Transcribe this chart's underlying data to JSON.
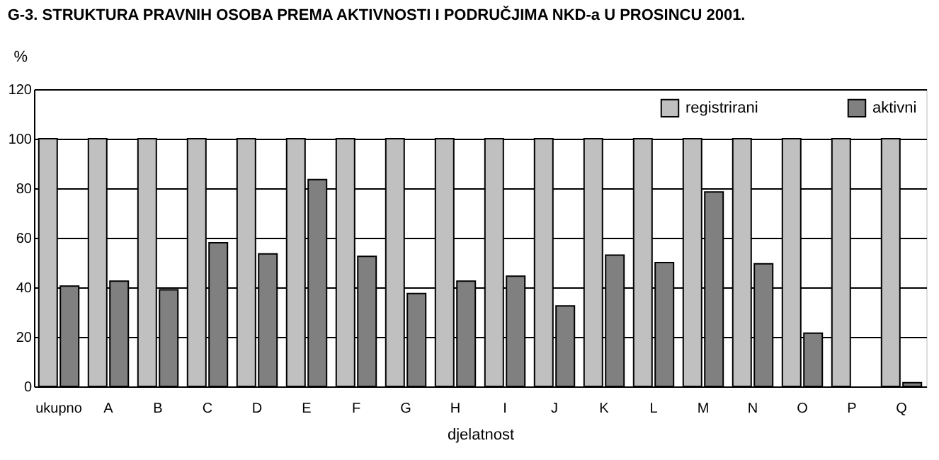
{
  "chart_data": {
    "type": "bar",
    "title": "G-3. STRUKTURA PRAVNIH OSOBA PREMA AKTIVNOSTI I PODRUČJIMA NKD-a U PROSINCU 2001.",
    "xlabel": "djelatnost",
    "ylabel": "%",
    "categories": [
      "ukupno",
      "A",
      "B",
      "C",
      "D",
      "E",
      "F",
      "G",
      "H",
      "I",
      "J",
      "K",
      "L",
      "M",
      "N",
      "O",
      "P",
      "Q"
    ],
    "series": [
      {
        "name": "registrirani",
        "color": "#c0c0c0",
        "values": [
          100,
          100,
          100,
          100,
          100,
          100,
          100,
          100,
          100,
          100,
          100,
          100,
          100,
          100,
          100,
          100,
          100,
          100
        ]
      },
      {
        "name": "aktivni",
        "color": "#808080",
        "values": [
          40.5,
          42.5,
          39,
          58,
          53.5,
          83.5,
          52.5,
          37.5,
          42.5,
          44.5,
          32.5,
          53,
          50,
          78.5,
          49.5,
          21.5,
          null,
          1.5
        ]
      }
    ],
    "ylim": [
      0,
      120
    ],
    "yticks": [
      0,
      20,
      40,
      60,
      80,
      100,
      120
    ],
    "grid": "y",
    "legend": "top right"
  }
}
